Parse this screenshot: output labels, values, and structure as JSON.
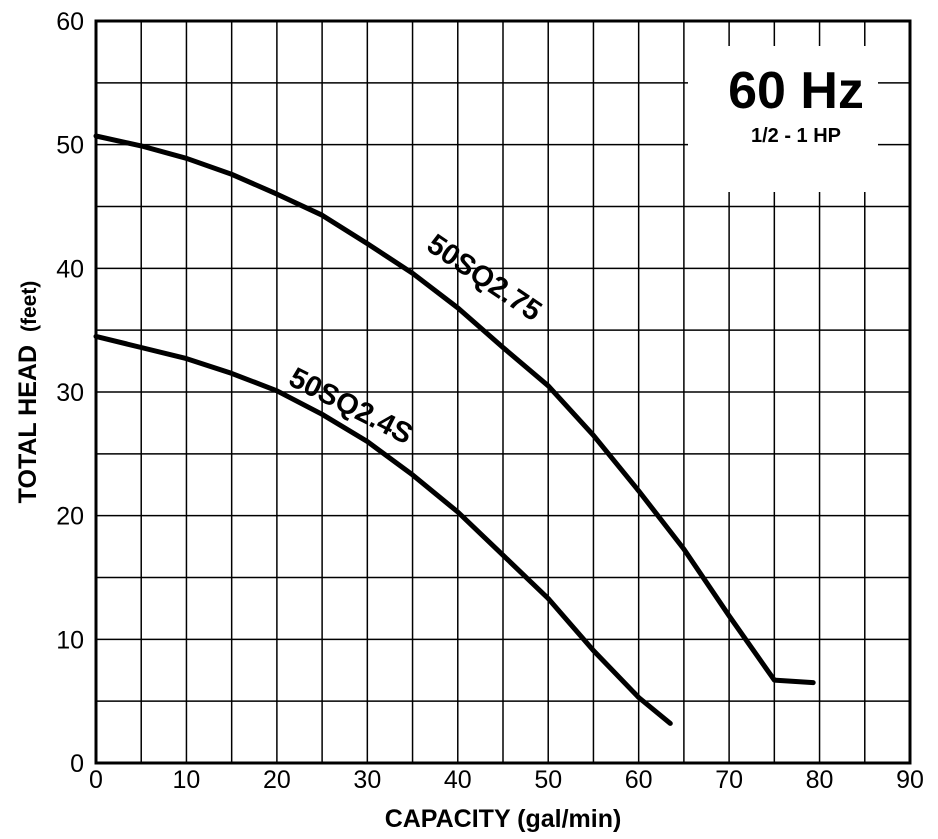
{
  "chart_data": {
    "type": "line",
    "xlabel": "CAPACITY (gal/min)",
    "ylabel_main": "TOTAL HEAD",
    "ylabel_unit": "(feet)",
    "xlim": [
      0,
      90
    ],
    "ylim": [
      0,
      60
    ],
    "x_ticks": [
      0,
      10,
      20,
      30,
      40,
      50,
      60,
      70,
      80,
      90
    ],
    "y_ticks": [
      0,
      10,
      20,
      30,
      40,
      50,
      60
    ],
    "x_tick_labels": [
      "0",
      "10",
      "20",
      "30",
      "40",
      "50",
      "60",
      "70",
      "80",
      "90"
    ],
    "y_tick_labels": [
      "0",
      "10",
      "20",
      "30",
      "40",
      "50",
      "60"
    ],
    "minor_x_step": 5,
    "minor_y_step": 5,
    "grid": true,
    "annotation": {
      "frequency": "60 Hz",
      "horsepower": "1/2 - 1 HP",
      "placement": "top-right"
    },
    "series": [
      {
        "name": "50SQ2.75",
        "x": [
          0,
          5,
          10,
          15,
          20,
          25,
          30,
          35,
          40,
          45,
          50,
          55,
          60,
          65,
          70,
          75,
          79.3
        ],
        "y": [
          50.7,
          49.9,
          48.9,
          47.6,
          46.0,
          44.3,
          42.0,
          39.6,
          36.8,
          33.6,
          30.5,
          26.5,
          22.0,
          17.3,
          11.9,
          6.7,
          6.5
        ]
      },
      {
        "name": "50SQ2.4S",
        "x": [
          0,
          5,
          10,
          15,
          20,
          25,
          30,
          35,
          40,
          45,
          50,
          55,
          60,
          63.5
        ],
        "y": [
          34.5,
          33.6,
          32.7,
          31.5,
          30.1,
          28.2,
          26.0,
          23.3,
          20.3,
          16.8,
          13.3,
          9.1,
          5.3,
          3.2
        ]
      }
    ]
  }
}
